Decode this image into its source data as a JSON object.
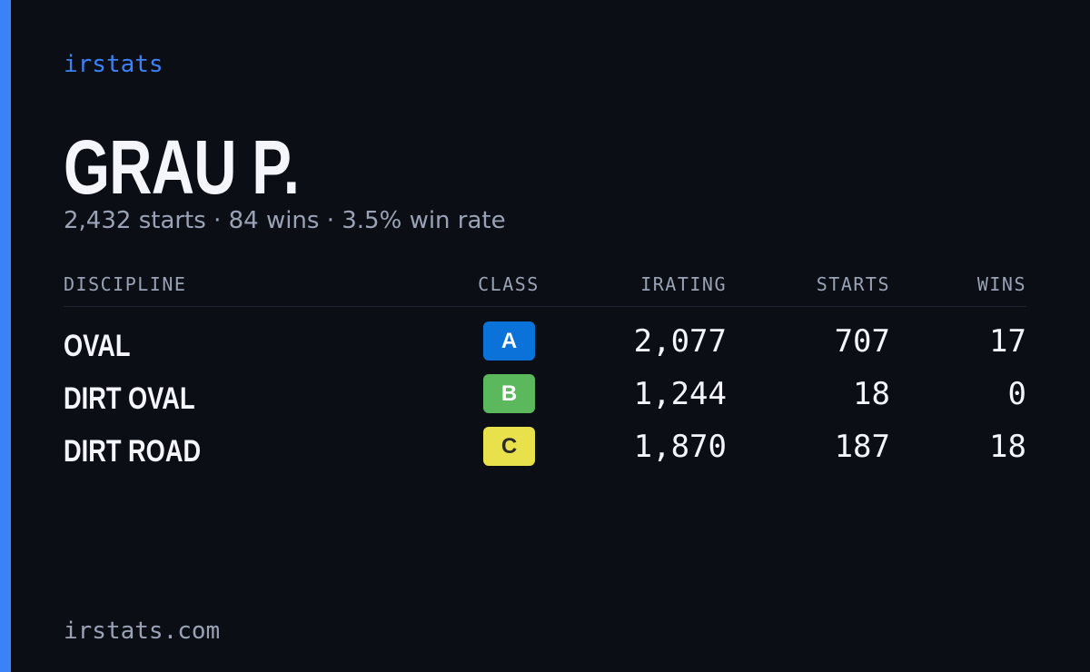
{
  "brand": "irstats",
  "driver": {
    "name": "GRAU P.",
    "summary": "2,432 starts · 84 wins · 3.5% win rate"
  },
  "table": {
    "headers": [
      "DISCIPLINE",
      "CLASS",
      "IRATING",
      "STARTS",
      "WINS"
    ],
    "rows": [
      {
        "discipline": "OVAL",
        "class": "A",
        "class_color": "#0a72d8",
        "class_text_color": "#ffffff",
        "irating": "2,077",
        "starts": "707",
        "wins": "17"
      },
      {
        "discipline": "DIRT OVAL",
        "class": "B",
        "class_color": "#5cb85c",
        "class_text_color": "#ffffff",
        "irating": "1,244",
        "starts": "18",
        "wins": "0"
      },
      {
        "discipline": "DIRT ROAD",
        "class": "C",
        "class_color": "#e9e14b",
        "class_text_color": "#2a2a2a",
        "irating": "1,870",
        "starts": "187",
        "wins": "18"
      }
    ]
  },
  "footer": "irstats.com"
}
